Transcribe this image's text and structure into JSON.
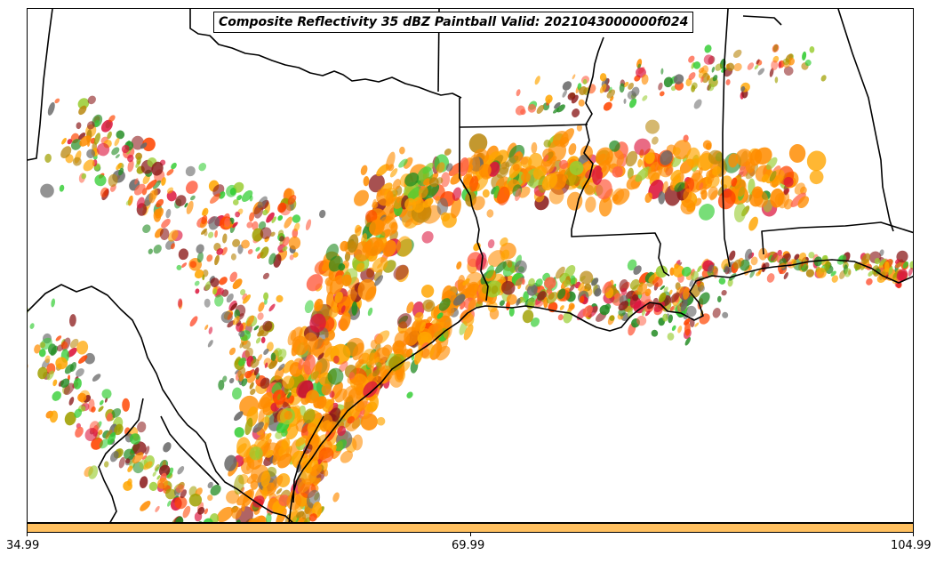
{
  "title": "Composite Reflectivity 35 dBZ Paintball Valid: 2021043000000f024",
  "colorbar": {
    "fill_color": "#ffc060",
    "ticks": [
      "34.99",
      "69.99",
      "104.99"
    ]
  },
  "map": {
    "background": "#ffffff",
    "boundary_color": "#000000",
    "paintball_colors": [
      "#ff8c00",
      "#ff4500",
      "#ffa500",
      "#dc143c",
      "#8b1a1a",
      "#32cd32",
      "#228b22",
      "#9acd32",
      "#a0a000",
      "#696969",
      "#ff6347",
      "#b8860b"
    ]
  }
}
